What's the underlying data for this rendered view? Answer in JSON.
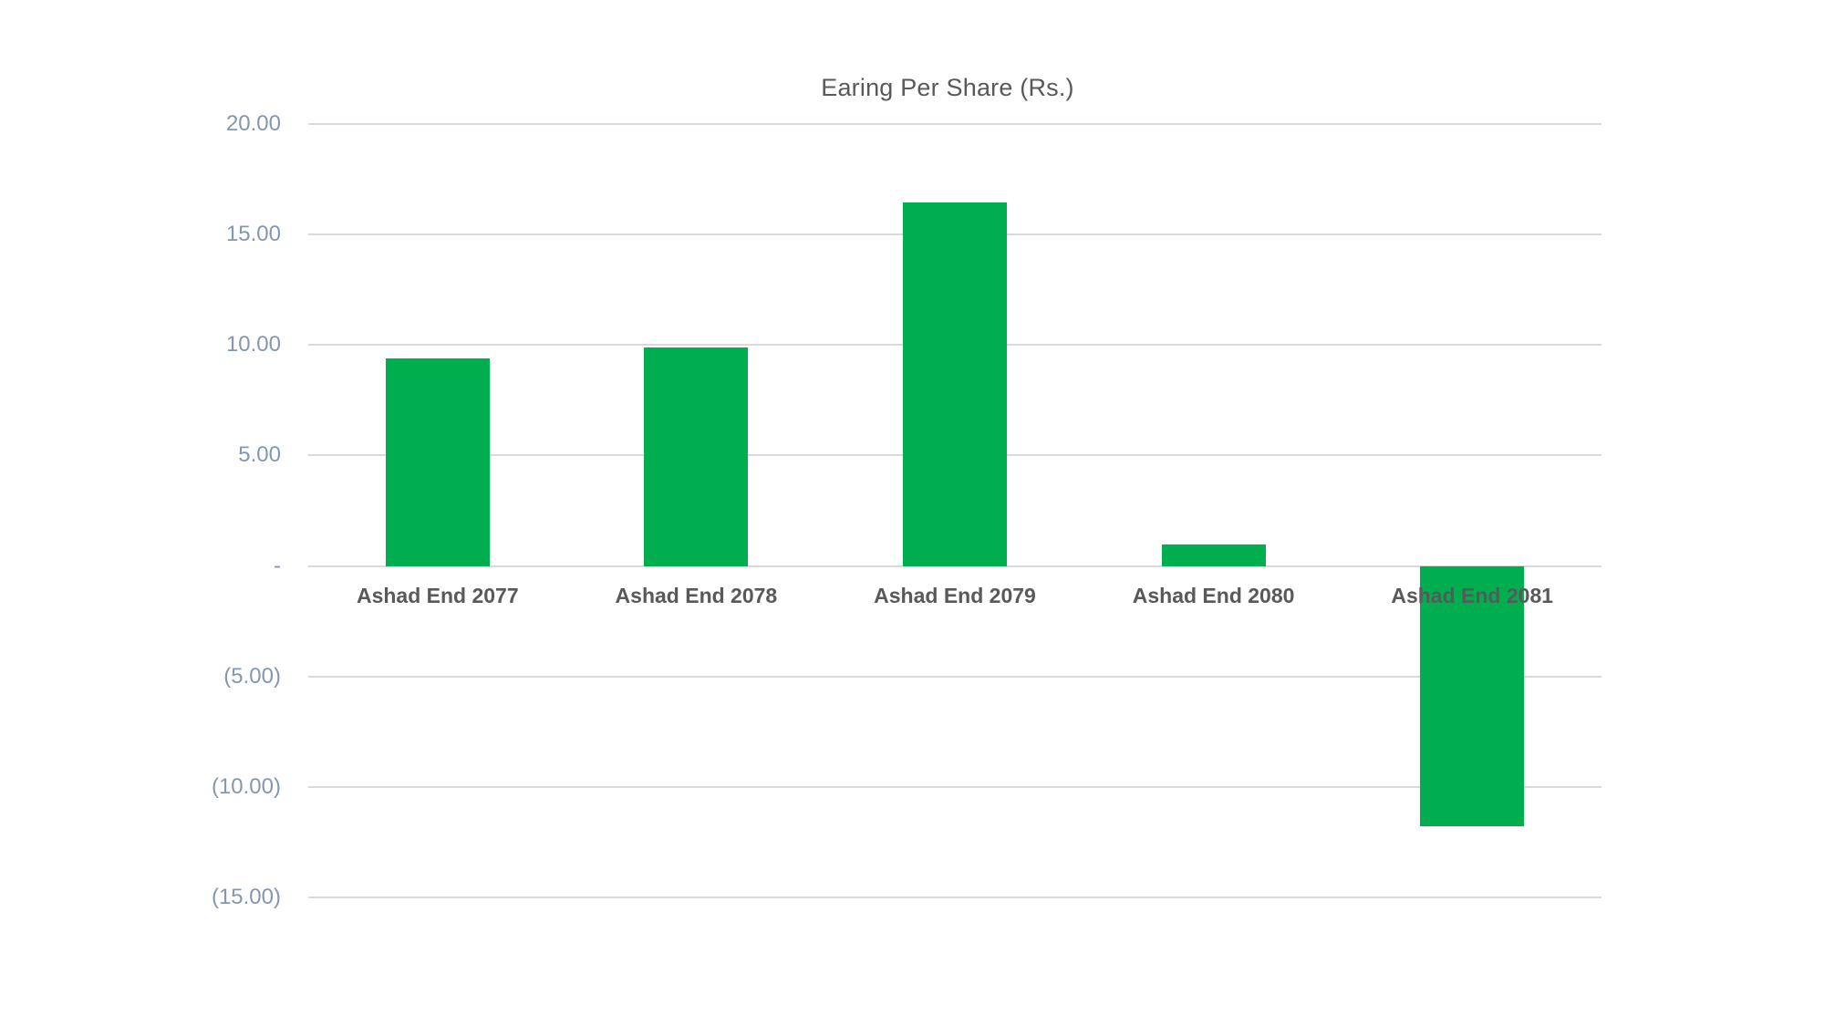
{
  "chart_data": {
    "type": "bar",
    "title": "Earing Per Share (Rs.)",
    "categories": [
      "Ashad End 2077",
      "Ashad End 2078",
      "Ashad End 2079",
      "Ashad End 2080",
      "Ashad End 2081"
    ],
    "values": [
      9.38,
      9.88,
      16.47,
      0.99,
      -11.78
    ],
    "xlabel": "",
    "ylabel": "",
    "ylim": [
      -15,
      20
    ],
    "ytick_step": 5,
    "ytick_labels": [
      "20.00",
      "15.00",
      "10.00",
      "5.00",
      "-",
      "(5.00)",
      "(10.00)",
      "(15.00)"
    ],
    "grid": "horizontal",
    "legend": "none",
    "number_format": "accounting",
    "colors": {
      "bar": "#00AE4F",
      "gridline": "#D9D9D9",
      "tick_label": "#8497B0",
      "title": "#595959",
      "category_label": "#595959",
      "background": "#FFFFFF"
    }
  }
}
